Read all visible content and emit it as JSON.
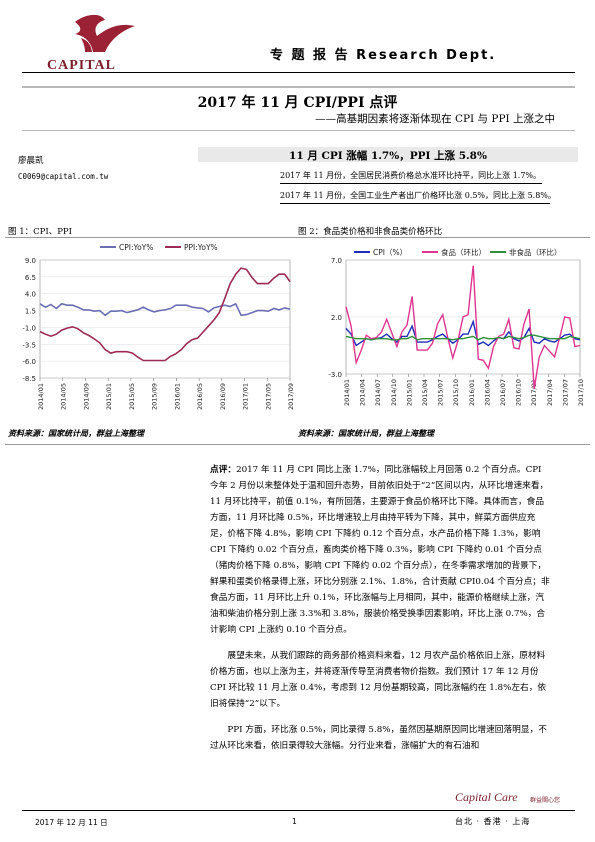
{
  "header": {
    "logo_text": "CAPITAL",
    "dept_label": "专 题 报 告  Research Dept."
  },
  "report": {
    "title": "2017 年 11 月 CPI/PPI  点评",
    "subtitle": "——高基期因素将逐渐体现在 CPI 与 PPI 上涨之中",
    "author": "廖晨凯",
    "email": "C0069@capital.com.tw",
    "headline": "11 月 CPI 涨幅 1.7%，PPI 上涨 5.8%",
    "bullets": [
      "2017 年 11 月份，全国居民消费价格总水准环比持平，同比上涨 1.7%。",
      "2017 年 11 月份，全国工业生产者出厂价格环比涨 0.5%，同比上涨 5.8%。"
    ]
  },
  "figures": [
    {
      "label": "图 1：CPI、PPI",
      "source": "资料来源：国家统计局，群益上海整理"
    },
    {
      "label": "图 2：食品类价格和非食品类价格环比",
      "source": "资料来源：国家统计局，群益上海整理"
    }
  ],
  "chart_data": [
    {
      "type": "line",
      "legend_position": "top",
      "ylim": [
        -8.5,
        9.0
      ],
      "yticks": [
        "9.0",
        "6.5",
        "4.0",
        "1.5",
        "-1.0",
        "-3.5",
        "-6.0",
        "-8.5"
      ],
      "xticks": [
        "2014/01",
        "2014/05",
        "2014/09",
        "2015/01",
        "2015/05",
        "2015/09",
        "2016/01",
        "2016/05",
        "2016/09",
        "2017/01",
        "2017/05",
        "2017/09"
      ],
      "series": [
        {
          "name": "CPI:YoY%",
          "color": "#6a6fb3",
          "values": [
            2.5,
            2.0,
            2.4,
            1.8,
            2.5,
            2.3,
            2.3,
            2.0,
            1.6,
            1.6,
            1.4,
            1.5,
            0.8,
            1.4,
            1.4,
            1.5,
            1.2,
            1.4,
            1.6,
            2.0,
            1.6,
            1.3,
            1.5,
            1.6,
            1.8,
            2.3,
            2.3,
            2.3,
            2.0,
            1.9,
            1.8,
            1.3,
            1.9,
            2.1,
            2.3,
            2.1,
            2.5,
            0.8,
            0.9,
            1.2,
            1.5,
            1.5,
            1.4,
            1.8,
            1.6,
            1.9,
            1.7
          ]
        },
        {
          "name": "PPI:YoY%",
          "color": "#9c2a55",
          "values": [
            -1.6,
            -2.0,
            -2.3,
            -2.0,
            -1.4,
            -1.1,
            -0.9,
            -1.2,
            -1.8,
            -2.2,
            -2.7,
            -3.3,
            -4.3,
            -4.8,
            -4.6,
            -4.6,
            -4.6,
            -4.8,
            -5.4,
            -5.9,
            -5.9,
            -5.9,
            -5.9,
            -5.9,
            -5.3,
            -4.9,
            -4.3,
            -3.4,
            -2.8,
            -2.6,
            -1.7,
            -0.8,
            0.1,
            1.2,
            3.3,
            5.5,
            6.9,
            7.8,
            7.6,
            6.4,
            5.5,
            5.5,
            5.5,
            6.3,
            6.9,
            6.9,
            5.8
          ]
        }
      ]
    },
    {
      "type": "line",
      "legend_position": "top",
      "ylim": [
        -3.0,
        7.0
      ],
      "yticks": [
        "7.0",
        "2.0",
        "-3.0"
      ],
      "xticks": [
        "2014/01",
        "2014/04",
        "2014/07",
        "2014/10",
        "2015/01",
        "2015/04",
        "2015/07",
        "2015/10",
        "2016/01",
        "2016/04",
        "2016/07",
        "2016/10",
        "2017/01",
        "2017/04",
        "2017/07",
        "2017/10"
      ],
      "series": [
        {
          "name": "CPI（%）",
          "color": "#1d2db8",
          "values": [
            1.0,
            0.5,
            -0.5,
            -0.2,
            0.1,
            0.0,
            0.1,
            0.2,
            0.5,
            0.1,
            -0.2,
            0.3,
            0.3,
            1.2,
            -0.2,
            -0.2,
            -0.2,
            0.0,
            0.3,
            0.5,
            0.1,
            -0.3,
            0.0,
            0.5,
            0.5,
            1.6,
            -0.4,
            -0.2,
            -0.5,
            -0.1,
            0.2,
            0.1,
            0.7,
            0.1,
            -0.1,
            0.2,
            1.0,
            -0.2,
            -0.3,
            0.1,
            -0.1,
            -0.2,
            0.1,
            0.4,
            0.5,
            0.1,
            0.0
          ]
        },
        {
          "name": "食品（环比）",
          "color": "#e0358f",
          "values": [
            2.9,
            1.2,
            -2.0,
            -0.9,
            0.4,
            0.1,
            0.2,
            0.7,
            1.8,
            0.6,
            -0.6,
            0.7,
            1.3,
            3.8,
            -0.9,
            -0.9,
            -0.9,
            -0.3,
            1.4,
            2.2,
            0.2,
            -1.6,
            -0.1,
            2.0,
            2.2,
            6.5,
            -1.7,
            -1.8,
            -2.5,
            -0.6,
            0.3,
            0.5,
            1.8,
            -0.7,
            -0.8,
            1.4,
            2.7,
            -4.3,
            -1.5,
            -0.5,
            -1.0,
            -1.5,
            0.2,
            2.0,
            1.9,
            -0.6,
            -0.5
          ]
        },
        {
          "name": "非食品（环比）",
          "color": "#2f8f3a",
          "values": [
            0.3,
            0.2,
            0.1,
            0.1,
            0.1,
            0.0,
            0.1,
            0.1,
            0.1,
            0.0,
            0.0,
            0.1,
            0.1,
            0.3,
            0.0,
            0.1,
            0.1,
            0.1,
            0.1,
            0.1,
            0.1,
            0.0,
            0.1,
            0.1,
            0.2,
            0.3,
            0.0,
            0.2,
            0.1,
            0.1,
            0.2,
            0.1,
            0.3,
            0.2,
            0.1,
            0.2,
            0.4,
            0.4,
            0.3,
            0.2,
            0.1,
            0.1,
            0.1,
            0.1,
            0.3,
            0.2,
            0.1
          ]
        }
      ]
    }
  ],
  "commentary": {
    "lead_label": "点评：",
    "paragraphs": [
      "2017 年 11 月 CPI 同比上涨 1.7%，同比涨幅较上月回落 0.2 个百分点。CPI 今年 2 月份以来整体处于温和回升态势，目前依旧处于“2”区间以内，从环比增速来看，11 月环比持平，前值 0.1%，有所回落，主要源于食品价格环比下降。具体而言，食品方面，11 月环比降 0.5%，环比增速较上月由持平转为下降，其中，鲜菜方面供应充足，价格下降 4.8%，影响 CPI 下降约 0.12 个百分点，水产品价格下降 1.3%，影响 CPI 下降约 0.02 个百分点，畜肉类价格下降 0.3%，影响 CPI 下降约 0.01 个百分点（猪肉价格下降 0.8%，影响 CPI 下降约 0.02 个百分点），在冬季需求增加的背景下，鲜果和蛋类价格录得上涨，环比分别涨 2.1%、1.8%，合计贡献 CPI0.04 个百分点；非食品方面，11 月环比上升 0.1%，环比涨幅与上月相同，其中，能源价格继续上涨，汽油和柴油价格分别上涨 3.3%和 3.8%，服装价格受换季因素影响，环比上涨 0.7%，合计影响 CPI 上涨约 0.10 个百分点。",
      "展望未来，从我们跟踪的商务部价格资料来看，12 月农产品价格依旧上涨，原材料价格方面，也以上涨为主，并将逐渐传导至消费者物价指数。我们预计 17 年 12 月份 CPI 环比较 11 月上涨 0.4%，考虑到 12 月份基期较高，同比涨幅约在 1.8%左右，依旧将保持“2”以下。",
      "PPI 方面，环比涨 0.5%，同比录得 5.8%，虽然因基期原因同比增速回落明显，不过从环比来看，依旧录得较大涨幅。分行业来看，涨幅扩大的有石油和"
    ]
  },
  "footer": {
    "date": "2017 年 12 月 11 日",
    "page": "1",
    "brand": "Capital Care",
    "brand_sub": "群益關心您",
    "cities": "台北 · 香港 · 上海"
  }
}
